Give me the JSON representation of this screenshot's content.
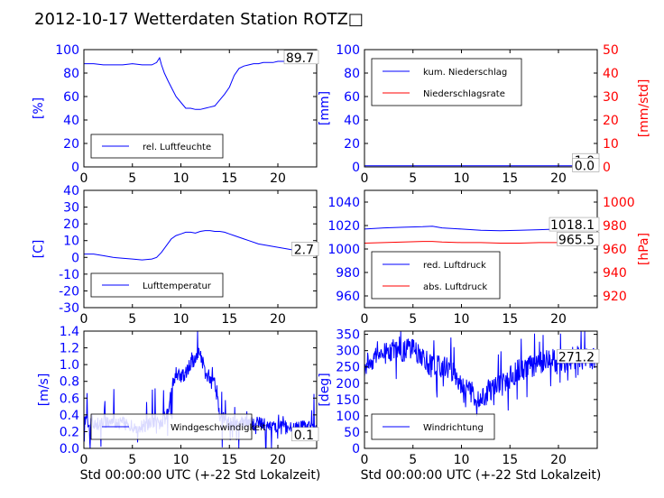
{
  "figure": {
    "title": "2012-10-17 Wetterdaten Station ROTZ□"
  },
  "colors": {
    "primary": "#0000ff",
    "secondary": "#ff0000",
    "text": "#000000"
  },
  "chart_data": [
    {
      "id": "humidity",
      "type": "line",
      "ylabel": "[%]",
      "xlabel": "",
      "xlim": [
        0,
        24
      ],
      "ylim": [
        0,
        100
      ],
      "xticks": [
        0,
        5,
        10,
        15,
        20
      ],
      "yticks": [
        0,
        20,
        40,
        60,
        80,
        100
      ],
      "annotation": "89.7",
      "legend": "lower-left",
      "series": [
        {
          "name": "rel. Luftfeuchte",
          "axis": "left",
          "color": "#0000ff",
          "x": [
            0,
            1,
            2,
            3,
            4,
            5,
            6,
            7,
            7.5,
            7.8,
            8,
            8.3,
            8.7,
            9,
            9.5,
            10,
            10.5,
            11,
            11.5,
            12,
            12.5,
            13,
            13.5,
            14,
            14.5,
            15,
            15.5,
            16,
            16.5,
            17,
            17.5,
            18,
            18.5,
            19,
            19.5,
            20,
            20.5,
            21,
            21.5,
            22,
            22.5,
            23,
            24
          ],
          "y": [
            88,
            88,
            87,
            87,
            87,
            88,
            87,
            87,
            89,
            93,
            87,
            80,
            73,
            68,
            60,
            55,
            50,
            50,
            49,
            49,
            50,
            51,
            52,
            57,
            62,
            68,
            78,
            84,
            86,
            87,
            88,
            88,
            89,
            89,
            89,
            90,
            90,
            90,
            89.5,
            90,
            89.7,
            89.7,
            89.7
          ]
        }
      ]
    },
    {
      "id": "precip",
      "type": "line",
      "ylabel": "[mm]",
      "ylabel2": "[mm/std]",
      "xlabel": "",
      "xlim": [
        0,
        24
      ],
      "ylim": [
        0,
        100
      ],
      "ylim2": [
        0,
        50
      ],
      "xticks": [
        0,
        5,
        10,
        15,
        20
      ],
      "yticks": [
        0,
        20,
        40,
        60,
        80,
        100
      ],
      "yticks2": [
        0,
        10,
        20,
        30,
        40,
        50
      ],
      "annotations": [
        "1.0",
        "0.0"
      ],
      "legend": "upper-left",
      "series": [
        {
          "name": "kum. Niederschlag",
          "axis": "left",
          "color": "#0000ff",
          "x": [
            0,
            24
          ],
          "y": [
            1,
            1
          ]
        },
        {
          "name": "Niederschlagsrate",
          "axis": "right",
          "color": "#ff0000",
          "x": [
            0,
            24
          ],
          "y": [
            0,
            0
          ]
        }
      ]
    },
    {
      "id": "temperature",
      "type": "line",
      "ylabel": "[C]",
      "xlabel": "",
      "xlim": [
        0,
        24
      ],
      "ylim": [
        -30,
        40
      ],
      "xticks": [
        0,
        5,
        10,
        15,
        20
      ],
      "yticks": [
        -30,
        -20,
        -10,
        0,
        10,
        20,
        30,
        40
      ],
      "annotation": "2.7",
      "legend": "lower-left",
      "series": [
        {
          "name": "Lufttemperatur",
          "axis": "left",
          "color": "#0000ff",
          "x": [
            0,
            1,
            2,
            3,
            4,
            5,
            6,
            7,
            7.5,
            8,
            8.5,
            9,
            9.5,
            10,
            10.5,
            11,
            11.5,
            12,
            12.5,
            13,
            13.5,
            14,
            14.5,
            15,
            15.5,
            16,
            16.5,
            17,
            18,
            19,
            20,
            21,
            22,
            23,
            24
          ],
          "y": [
            2,
            2,
            1,
            0,
            -0.5,
            -1,
            -1.5,
            -1,
            0,
            3,
            7,
            11,
            13,
            14,
            15,
            15,
            14.5,
            15.5,
            16,
            16,
            15.5,
            15.5,
            15,
            14,
            13,
            12,
            11,
            10,
            8,
            7,
            6,
            5,
            4,
            3,
            2.7
          ]
        }
      ]
    },
    {
      "id": "pressure",
      "type": "line",
      "ylabel": "",
      "ylabel2": "[hPa]",
      "xlabel": "",
      "xlim": [
        0,
        24
      ],
      "ylim": [
        950,
        1050
      ],
      "ylim2": [
        910,
        1010
      ],
      "xticks": [
        0,
        5,
        10,
        15,
        20
      ],
      "yticks": [
        960,
        980,
        1000,
        1020,
        1040
      ],
      "yticks2": [
        920,
        940,
        960,
        980,
        1000
      ],
      "annotations": [
        "1018.1",
        "965.5"
      ],
      "legend": "lower-left",
      "series": [
        {
          "name": "red. Luftdruck",
          "axis": "left",
          "color": "#0000ff",
          "x": [
            0,
            2,
            4,
            6,
            7,
            8,
            10,
            12,
            14,
            16,
            18,
            20,
            22,
            24
          ],
          "y": [
            1017,
            1018,
            1018.5,
            1019,
            1019.5,
            1018,
            1017,
            1016,
            1015.5,
            1016,
            1016.5,
            1017,
            1017.5,
            1018.1
          ]
        },
        {
          "name": "abs. Luftdruck",
          "axis": "right",
          "color": "#ff0000",
          "x": [
            0,
            2,
            4,
            6,
            7,
            8,
            10,
            12,
            14,
            16,
            18,
            20,
            22,
            24
          ],
          "y": [
            965,
            965.5,
            966,
            966.5,
            966.5,
            966,
            965.5,
            965.5,
            965,
            965,
            965.5,
            965.5,
            965.5,
            965.5
          ]
        }
      ]
    },
    {
      "id": "wind_speed",
      "type": "line",
      "ylabel": "[m/s]",
      "xlabel": "Std 00:00:00 UTC (+-22 Std Lokalzeit)",
      "xlim": [
        0,
        24
      ],
      "ylim": [
        0,
        1.4
      ],
      "xticks": [
        0,
        5,
        10,
        15,
        20
      ],
      "yticks": [
        0.0,
        0.2,
        0.4,
        0.6,
        0.8,
        1.0,
        1.2,
        1.4
      ],
      "annotation": "0.1",
      "legend": "lower-left",
      "series": [
        {
          "name": "Windgeschwindigkeit",
          "axis": "left",
          "color": "#0000ff",
          "noisy": true,
          "x": [
            0,
            2,
            4,
            6,
            7,
            8,
            8.5,
            9,
            9.5,
            10,
            10.5,
            11,
            11.5,
            12,
            12.5,
            13,
            13.5,
            14,
            15,
            16,
            18,
            20,
            22,
            24
          ],
          "y": [
            0.3,
            0.3,
            0.3,
            0.25,
            0.3,
            0.3,
            0.4,
            0.7,
            0.9,
            0.85,
            0.9,
            1.0,
            1.1,
            1.15,
            0.9,
            0.85,
            0.8,
            0.4,
            0.3,
            0.3,
            0.3,
            0.25,
            0.25,
            0.25
          ]
        }
      ]
    },
    {
      "id": "wind_dir",
      "type": "line",
      "ylabel": "[deg]",
      "xlabel": "Std 00:00:00 UTC (+-22 Std Lokalzeit)",
      "xlim": [
        0,
        24
      ],
      "ylim": [
        0,
        360
      ],
      "xticks": [
        0,
        5,
        10,
        15,
        20
      ],
      "yticks": [
        0,
        50,
        100,
        150,
        200,
        250,
        300,
        350
      ],
      "annotation": "271.2",
      "legend": "lower-left",
      "series": [
        {
          "name": "Windrichtung",
          "axis": "left",
          "color": "#0000ff",
          "noisy": true,
          "x": [
            0,
            1,
            2,
            3,
            4,
            5,
            6,
            7,
            8,
            9,
            10,
            11,
            12,
            13,
            14,
            15,
            16,
            17,
            18,
            19,
            20,
            21,
            22,
            23,
            24
          ],
          "y": [
            250,
            280,
            290,
            300,
            300,
            310,
            280,
            250,
            250,
            240,
            200,
            170,
            160,
            180,
            200,
            220,
            240,
            250,
            260,
            270,
            270,
            275,
            280,
            275,
            271
          ]
        }
      ]
    }
  ]
}
